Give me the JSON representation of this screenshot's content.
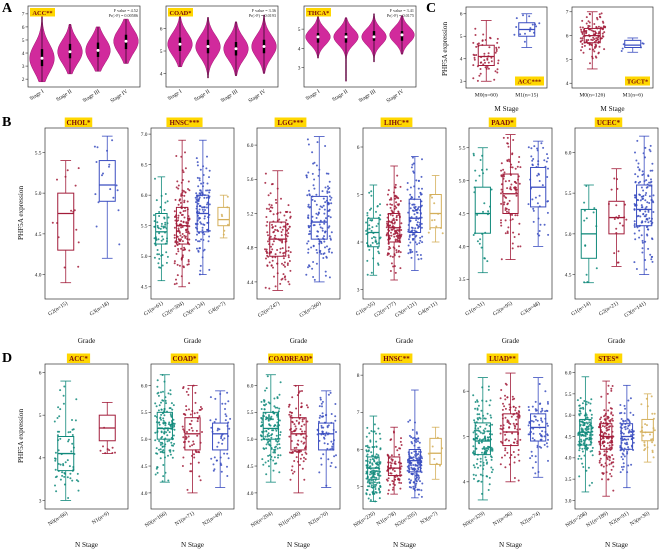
{
  "panels": {
    "A": {
      "label": "A"
    },
    "B": {
      "label": "B",
      "ylabel": "PHF5A expression",
      "xlabel": "Grade"
    },
    "C": {
      "label": "C",
      "ylabel": "PHF5A expression",
      "xlabel": "M Stage"
    },
    "D": {
      "label": "D",
      "ylabel": "PHF5A expression",
      "xlabel": "N Stage"
    }
  },
  "palette": {
    "teal": "#10897b",
    "red": "#a21c3a",
    "blue": "#3a4dc0",
    "gold": "#d4af5a",
    "violin_fill": "#d12a9c",
    "violin_stroke": "#a0136f",
    "label_bg": "#ffd700",
    "label_fg": "#7b0c0c",
    "axis": "#333333",
    "text": "#111111"
  },
  "chart_data": [
    {
      "panel": "A",
      "type": "violin",
      "title": "ACC**",
      "stats": [
        "F value = 4.52",
        "Pr(>F) = 0.00586"
      ],
      "categories": [
        "Stage I",
        "Stage II",
        "Stage III",
        "Stage IV"
      ],
      "ylim": [
        1.4,
        7.6
      ],
      "yticks": [
        "2",
        "3",
        "4",
        "5",
        "6",
        "7"
      ],
      "series": [
        {
          "median": 3.6,
          "q1": 3.0,
          "q3": 4.3,
          "min": 1.8,
          "max": 6.8
        },
        {
          "median": 4.1,
          "q1": 3.6,
          "q3": 4.7,
          "min": 2.4,
          "max": 6.2
        },
        {
          "median": 4.2,
          "q1": 3.7,
          "q3": 4.8,
          "min": 2.6,
          "max": 6.0
        },
        {
          "median": 4.9,
          "q1": 4.3,
          "q3": 5.4,
          "min": 3.2,
          "max": 6.6
        }
      ]
    },
    {
      "panel": "A",
      "type": "violin",
      "title": "COAD*",
      "stats": [
        "F value = 3.36",
        "Pr(>F) = 0.0193"
      ],
      "categories": [
        "Stage I",
        "Stage II",
        "Stage III",
        "Stage IV"
      ],
      "ylim": [
        3.4,
        7.0
      ],
      "yticks": [
        "4",
        "5",
        "6"
      ],
      "series": [
        {
          "median": 5.3,
          "q1": 5.0,
          "q3": 5.6,
          "min": 4.3,
          "max": 6.6
        },
        {
          "median": 5.2,
          "q1": 4.9,
          "q3": 5.5,
          "min": 3.8,
          "max": 6.5
        },
        {
          "median": 5.1,
          "q1": 4.8,
          "q3": 5.4,
          "min": 3.9,
          "max": 6.3
        },
        {
          "median": 5.2,
          "q1": 4.9,
          "q3": 5.5,
          "min": 4.0,
          "max": 6.6
        }
      ]
    },
    {
      "panel": "A",
      "type": "violin",
      "title": "THCA*",
      "stats": [
        "F value = 3.41",
        "Pr(>F) = 0.0175"
      ],
      "categories": [
        "Stage I",
        "Stage II",
        "Stage III",
        "Stage IV"
      ],
      "ylim": [
        2.0,
        6.2
      ],
      "yticks": [
        "3",
        "4",
        "5"
      ],
      "series": [
        {
          "median": 4.6,
          "q1": 4.3,
          "q3": 4.8,
          "min": 3.5,
          "max": 5.7
        },
        {
          "median": 4.6,
          "q1": 4.3,
          "q3": 4.8,
          "min": 2.3,
          "max": 5.6
        },
        {
          "median": 4.6,
          "q1": 4.4,
          "q3": 4.9,
          "min": 3.3,
          "max": 5.8
        },
        {
          "median": 4.7,
          "q1": 4.4,
          "q3": 4.9,
          "min": 3.7,
          "max": 5.7
        }
      ]
    },
    {
      "panel": "C",
      "type": "box",
      "title": "ACC***",
      "xlabel": "M Stage",
      "ylim": [
        2.7,
        6.3
      ],
      "yticks": [
        "3",
        "4",
        "5",
        "6"
      ],
      "groups": [
        {
          "label": "M0(n=60)",
          "n": 60,
          "color": "red",
          "median": 4.1,
          "q1": 3.7,
          "q3": 4.6,
          "lo": 3.0,
          "hi": 5.7
        },
        {
          "label": "M1(n=15)",
          "n": 15,
          "color": "blue",
          "median": 5.3,
          "q1": 5.0,
          "q3": 5.6,
          "lo": 4.5,
          "hi": 6.0
        }
      ]
    },
    {
      "panel": "C",
      "type": "box",
      "title": "TGCT*",
      "xlabel": "M Stage",
      "ylim": [
        3.8,
        7.2
      ],
      "yticks": [
        "4",
        "5",
        "6",
        "7"
      ],
      "groups": [
        {
          "label": "M0(n=126)",
          "n": 126,
          "color": "red",
          "median": 6.0,
          "q1": 5.7,
          "q3": 6.3,
          "lo": 4.6,
          "hi": 7.0
        },
        {
          "label": "M1(n=6)",
          "n": 6,
          "color": "blue",
          "median": 5.6,
          "q1": 5.5,
          "q3": 5.8,
          "lo": 5.3,
          "hi": 5.9
        }
      ]
    },
    {
      "panel": "B",
      "type": "box",
      "title": "CHOL*",
      "xlabel": "Grade",
      "ylim": [
        3.7,
        5.8
      ],
      "yticks": [
        "4.0",
        "4.5",
        "5.0",
        "5.5"
      ],
      "groups": [
        {
          "label": "G2(n=15)",
          "n": 15,
          "color": "red",
          "median": 4.75,
          "q1": 4.3,
          "q3": 5.0,
          "lo": 3.9,
          "hi": 5.4
        },
        {
          "label": "G3(n=18)",
          "n": 18,
          "color": "blue",
          "median": 5.1,
          "q1": 4.9,
          "q3": 5.4,
          "lo": 4.2,
          "hi": 5.7
        }
      ]
    },
    {
      "panel": "B",
      "type": "box",
      "title": "HNSC***",
      "xlabel": "Grade",
      "ylim": [
        4.3,
        7.1
      ],
      "yticks": [
        "4.5",
        "5.0",
        "5.5",
        "6.0",
        "6.5",
        "7.0"
      ],
      "groups": [
        {
          "label": "G1(n=61)",
          "n": 61,
          "color": "teal",
          "median": 5.4,
          "q1": 5.2,
          "q3": 5.7,
          "lo": 4.6,
          "hi": 6.3
        },
        {
          "label": "G2(n=304)",
          "n": 304,
          "color": "red",
          "median": 5.5,
          "q1": 5.2,
          "q3": 5.8,
          "lo": 4.5,
          "hi": 6.9
        },
        {
          "label": "G3(n=124)",
          "n": 124,
          "color": "blue",
          "median": 5.7,
          "q1": 5.4,
          "q3": 6.0,
          "lo": 4.7,
          "hi": 6.9
        },
        {
          "label": "G4(n=7)",
          "n": 7,
          "color": "gold",
          "median": 5.6,
          "q1": 5.5,
          "q3": 5.8,
          "lo": 5.3,
          "hi": 6.0
        }
      ]
    },
    {
      "panel": "B",
      "type": "box",
      "title": "LGG***",
      "xlabel": "Grade",
      "ylim": [
        4.2,
        6.2
      ],
      "yticks": [
        "4.4",
        "4.8",
        "5.2",
        "5.6",
        "6.0"
      ],
      "groups": [
        {
          "label": "G2(n=247)",
          "n": 247,
          "color": "red",
          "median": 4.9,
          "q1": 4.7,
          "q3": 5.1,
          "lo": 4.3,
          "hi": 5.7
        },
        {
          "label": "G3(n=260)",
          "n": 260,
          "color": "blue",
          "median": 5.1,
          "q1": 4.9,
          "q3": 5.4,
          "lo": 4.4,
          "hi": 6.1
        }
      ]
    },
    {
      "panel": "B",
      "type": "box",
      "title": "LIHC**",
      "xlabel": "Grade",
      "ylim": [
        2.8,
        6.4
      ],
      "yticks": [
        "3",
        "4",
        "5",
        "6"
      ],
      "groups": [
        {
          "label": "G1(n=55)",
          "n": 55,
          "color": "teal",
          "median": 4.2,
          "q1": 3.9,
          "q3": 4.5,
          "lo": 3.3,
          "hi": 5.2
        },
        {
          "label": "G2(n=177)",
          "n": 177,
          "color": "red",
          "median": 4.3,
          "q1": 4.0,
          "q3": 4.6,
          "lo": 3.2,
          "hi": 5.6
        },
        {
          "label": "G3(n=121)",
          "n": 121,
          "color": "blue",
          "median": 4.5,
          "q1": 4.2,
          "q3": 4.9,
          "lo": 3.4,
          "hi": 5.8
        },
        {
          "label": "G4(n=11)",
          "n": 11,
          "color": "gold",
          "median": 4.6,
          "q1": 4.3,
          "q3": 5.0,
          "lo": 4.0,
          "hi": 5.4
        }
      ]
    },
    {
      "panel": "B",
      "type": "box",
      "title": "PAAD*",
      "xlabel": "Grade",
      "ylim": [
        3.2,
        5.8
      ],
      "yticks": [
        "3.5",
        "4.0",
        "4.5",
        "5.0",
        "5.5"
      ],
      "groups": [
        {
          "label": "G1(n=31)",
          "n": 31,
          "color": "teal",
          "median": 4.5,
          "q1": 4.2,
          "q3": 4.9,
          "lo": 3.6,
          "hi": 5.5
        },
        {
          "label": "G2(n=95)",
          "n": 95,
          "color": "red",
          "median": 4.8,
          "q1": 4.5,
          "q3": 5.1,
          "lo": 3.8,
          "hi": 5.7
        },
        {
          "label": "G3(n=48)",
          "n": 48,
          "color": "blue",
          "median": 4.9,
          "q1": 4.6,
          "q3": 5.2,
          "lo": 4.0,
          "hi": 5.6
        }
      ]
    },
    {
      "panel": "B",
      "type": "box",
      "title": "UCEC*",
      "xlabel": "Grade",
      "ylim": [
        4.2,
        6.3
      ],
      "yticks": [
        "4.5",
        "5.0",
        "5.5",
        "6.0"
      ],
      "groups": [
        {
          "label": "G1(n=14)",
          "n": 14,
          "color": "teal",
          "median": 5.0,
          "q1": 4.7,
          "q3": 5.3,
          "lo": 4.4,
          "hi": 5.6
        },
        {
          "label": "G2(n=21)",
          "n": 21,
          "color": "red",
          "median": 5.2,
          "q1": 5.0,
          "q3": 5.4,
          "lo": 4.6,
          "hi": 5.8
        },
        {
          "label": "G3(n=141)",
          "n": 141,
          "color": "blue",
          "median": 5.3,
          "q1": 5.1,
          "q3": 5.6,
          "lo": 4.5,
          "hi": 6.2
        }
      ]
    },
    {
      "panel": "D",
      "type": "box",
      "title": "ACC*",
      "xlabel": "N Stage",
      "ylim": [
        2.8,
        6.2
      ],
      "yticks": [
        "3",
        "4",
        "5",
        "6"
      ],
      "groups": [
        {
          "label": "N0(n=66)",
          "n": 66,
          "color": "teal",
          "median": 4.1,
          "q1": 3.7,
          "q3": 4.5,
          "lo": 3.0,
          "hi": 5.8
        },
        {
          "label": "N1(n=9)",
          "n": 9,
          "color": "red",
          "median": 4.7,
          "q1": 4.4,
          "q3": 5.0,
          "lo": 4.1,
          "hi": 5.3
        }
      ]
    },
    {
      "panel": "D",
      "type": "box",
      "title": "COAD*",
      "xlabel": "N Stage",
      "ylim": [
        3.7,
        6.4
      ],
      "yticks": [
        "4.0",
        "4.5",
        "5.0",
        "5.5",
        "6.0"
      ],
      "groups": [
        {
          "label": "N0(n=166)",
          "n": 166,
          "color": "teal",
          "median": 5.2,
          "q1": 5.0,
          "q3": 5.5,
          "lo": 4.2,
          "hi": 6.2
        },
        {
          "label": "N1(n=71)",
          "n": 71,
          "color": "red",
          "median": 5.1,
          "q1": 4.8,
          "q3": 5.4,
          "lo": 4.0,
          "hi": 6.0
        },
        {
          "label": "N2(n=49)",
          "n": 49,
          "color": "blue",
          "median": 5.1,
          "q1": 4.8,
          "q3": 5.3,
          "lo": 4.1,
          "hi": 5.9
        }
      ]
    },
    {
      "panel": "D",
      "type": "box",
      "title": "COADREAD*",
      "xlabel": "N Stage",
      "ylim": [
        3.7,
        6.4
      ],
      "yticks": [
        "4.0",
        "4.5",
        "5.0",
        "5.5",
        "6.0"
      ],
      "groups": [
        {
          "label": "N0(n=204)",
          "n": 204,
          "color": "teal",
          "median": 5.2,
          "q1": 5.0,
          "q3": 5.5,
          "lo": 4.2,
          "hi": 6.2
        },
        {
          "label": "N1(n=100)",
          "n": 100,
          "color": "red",
          "median": 5.1,
          "q1": 4.8,
          "q3": 5.4,
          "lo": 4.0,
          "hi": 6.0
        },
        {
          "label": "N2(n=70)",
          "n": 70,
          "color": "blue",
          "median": 5.1,
          "q1": 4.8,
          "q3": 5.3,
          "lo": 4.1,
          "hi": 5.9
        }
      ]
    },
    {
      "panel": "D",
      "type": "box",
      "title": "HNSC**",
      "xlabel": "N Stage",
      "ylim": [
        4.4,
        8.3
      ],
      "yticks": [
        "5",
        "6",
        "7",
        "8"
      ],
      "groups": [
        {
          "label": "N0(n=220)",
          "n": 220,
          "color": "teal",
          "median": 5.5,
          "q1": 5.2,
          "q3": 5.8,
          "lo": 4.6,
          "hi": 6.9
        },
        {
          "label": "N1(n=78)",
          "n": 78,
          "color": "red",
          "median": 5.5,
          "q1": 5.3,
          "q3": 5.8,
          "lo": 4.8,
          "hi": 6.6
        },
        {
          "label": "N2(n=205)",
          "n": 205,
          "color": "blue",
          "median": 5.7,
          "q1": 5.4,
          "q3": 6.0,
          "lo": 4.7,
          "hi": 7.6
        },
        {
          "label": "N3(n=7)",
          "n": 7,
          "color": "gold",
          "median": 5.9,
          "q1": 5.6,
          "q3": 6.3,
          "lo": 5.2,
          "hi": 6.6
        }
      ]
    },
    {
      "panel": "D",
      "type": "box",
      "title": "LUAD**",
      "xlabel": "N Stage",
      "ylim": [
        3.4,
        6.6
      ],
      "yticks": [
        "4",
        "5",
        "6"
      ],
      "groups": [
        {
          "label": "N0(n=329)",
          "n": 329,
          "color": "teal",
          "median": 4.9,
          "q1": 4.6,
          "q3": 5.3,
          "lo": 3.6,
          "hi": 6.3
        },
        {
          "label": "N1(n=96)",
          "n": 96,
          "color": "red",
          "median": 5.1,
          "q1": 4.8,
          "q3": 5.5,
          "lo": 4.0,
          "hi": 6.4
        },
        {
          "label": "N2(n=74)",
          "n": 74,
          "color": "blue",
          "median": 5.2,
          "q1": 4.9,
          "q3": 5.5,
          "lo": 4.1,
          "hi": 6.3
        }
      ]
    },
    {
      "panel": "D",
      "type": "box",
      "title": "STES*",
      "xlabel": "N Stage",
      "ylim": [
        2.8,
        6.2
      ],
      "yticks": [
        "3.0",
        "3.5",
        "4.0",
        "4.5",
        "5.0",
        "5.5",
        "6.0"
      ],
      "groups": [
        {
          "label": "N0(n=208)",
          "n": 208,
          "color": "teal",
          "median": 4.6,
          "q1": 4.3,
          "q3": 4.9,
          "lo": 3.2,
          "hi": 5.9
        },
        {
          "label": "N1(n=189)",
          "n": 189,
          "color": "red",
          "median": 4.5,
          "q1": 4.2,
          "q3": 4.8,
          "lo": 3.1,
          "hi": 5.8
        },
        {
          "label": "N2(n=91)",
          "n": 91,
          "color": "blue",
          "median": 4.5,
          "q1": 4.2,
          "q3": 4.8,
          "lo": 3.3,
          "hi": 5.7
        },
        {
          "label": "N3(n=30)",
          "n": 30,
          "color": "gold",
          "median": 4.6,
          "q1": 4.4,
          "q3": 4.9,
          "lo": 3.9,
          "hi": 5.5
        }
      ]
    }
  ]
}
